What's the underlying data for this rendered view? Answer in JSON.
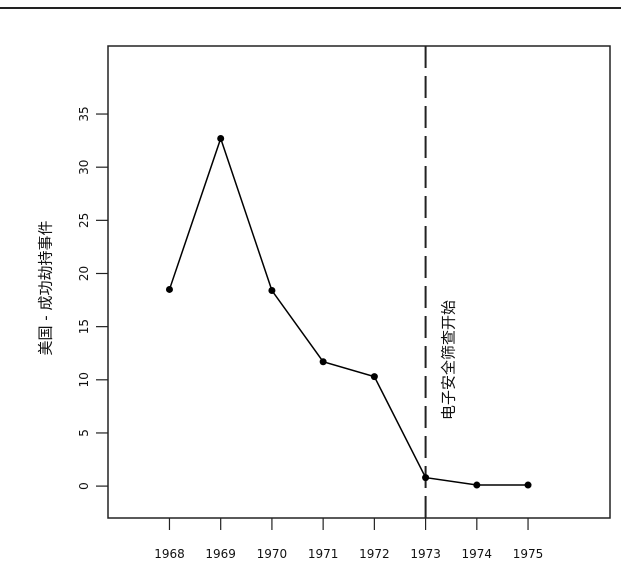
{
  "chart_data": {
    "type": "line",
    "y_label": "美国 - 成功劫持事件",
    "x": [
      1968,
      1969,
      1970,
      1971,
      1972,
      1973,
      1974,
      1975
    ],
    "series": [
      {
        "color": "#000000",
        "values": [
          18.5,
          32.7,
          18.4,
          11.7,
          10.3,
          0.8,
          0.1,
          0.1
        ]
      }
    ],
    "xlim": [
      1966.8,
      1976.6
    ],
    "xticks": [
      1968,
      1969,
      1970,
      1971,
      1972,
      1973,
      1974,
      1975
    ],
    "ylim": [
      -3,
      41.4
    ],
    "yticks": [
      0,
      5,
      10,
      15,
      20,
      25,
      30,
      35
    ],
    "annotations": [
      {
        "text": "电子安全筛查开始",
        "x": 1973
      }
    ]
  }
}
